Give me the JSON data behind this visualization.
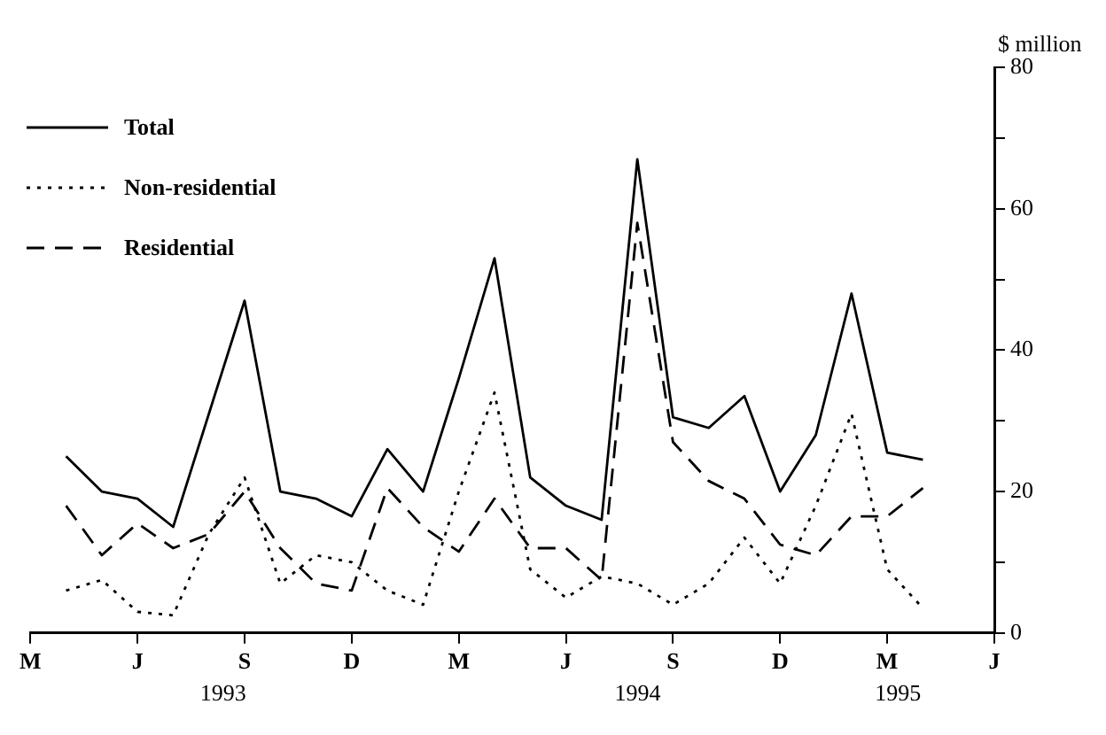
{
  "chart_data": {
    "type": "line",
    "ylabel": "$ million",
    "categories": [
      "M",
      null,
      null,
      "J",
      null,
      null,
      "S",
      null,
      null,
      "D",
      null,
      null,
      "M",
      null,
      null,
      "J",
      null,
      null,
      "S",
      null,
      null,
      "D",
      null,
      null,
      "M",
      null,
      null,
      "J"
    ],
    "series": [
      {
        "name": "Total",
        "color": "#000000",
        "line_style": "solid",
        "values": [
          null,
          25,
          20,
          19,
          15,
          31,
          47,
          20,
          19,
          16.5,
          26,
          20,
          36,
          53,
          22,
          18,
          16,
          67,
          30.5,
          29,
          33.5,
          20,
          28,
          48,
          25.5,
          24.5,
          null,
          null
        ]
      },
      {
        "name": "Non-residential",
        "color": "#000000",
        "line_style": "dotted",
        "values": [
          null,
          6,
          7.5,
          3,
          2.5,
          14,
          22,
          7,
          11,
          10,
          6,
          4,
          20,
          34,
          9,
          5,
          8,
          7,
          4,
          7,
          13.5,
          7,
          18,
          31,
          9,
          3.5,
          null,
          null
        ]
      },
      {
        "name": "Residential",
        "color": "#000000",
        "line_style": "dashed",
        "values": [
          null,
          18,
          11,
          15.5,
          12,
          14,
          20,
          12,
          7,
          6,
          20.5,
          15,
          11.5,
          19,
          12,
          12,
          7.5,
          58,
          27,
          21.5,
          19,
          12.5,
          11,
          16.5,
          16.5,
          20.5,
          null,
          null
        ]
      }
    ],
    "ylim": [
      0,
      80
    ],
    "yticks": [
      0,
      {
        "value": 10,
        "label": null
      },
      20,
      {
        "value": 30,
        "label": null
      },
      40,
      {
        "value": 50,
        "label": null
      },
      60,
      {
        "value": 70,
        "label": null
      },
      80
    ],
    "annotations": [
      "1993",
      "1994",
      "1995"
    ],
    "legend": "top left",
    "grid": false,
    "marker": "none"
  }
}
